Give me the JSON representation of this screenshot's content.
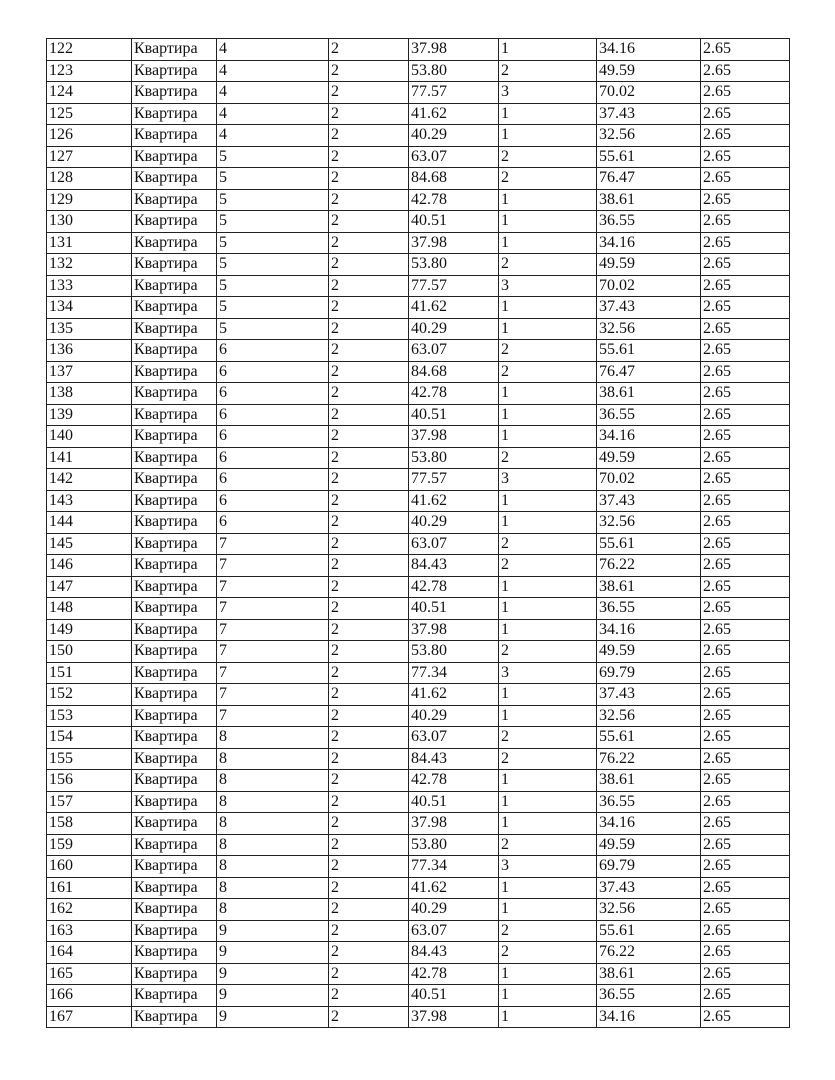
{
  "table": {
    "rows": [
      [
        "122",
        "Квартира",
        "4",
        "2",
        "37.98",
        "1",
        "34.16",
        "2.65"
      ],
      [
        "123",
        "Квартира",
        "4",
        "2",
        "53.80",
        "2",
        "49.59",
        "2.65"
      ],
      [
        "124",
        "Квартира",
        "4",
        "2",
        "77.57",
        "3",
        "70.02",
        "2.65"
      ],
      [
        "125",
        "Квартира",
        "4",
        "2",
        "41.62",
        "1",
        "37.43",
        "2.65"
      ],
      [
        "126",
        "Квартира",
        "4",
        "2",
        "40.29",
        "1",
        "32.56",
        "2.65"
      ],
      [
        "127",
        "Квартира",
        "5",
        "2",
        "63.07",
        "2",
        "55.61",
        "2.65"
      ],
      [
        "128",
        "Квартира",
        "5",
        "2",
        "84.68",
        "2",
        "76.47",
        "2.65"
      ],
      [
        "129",
        "Квартира",
        "5",
        "2",
        "42.78",
        "1",
        "38.61",
        "2.65"
      ],
      [
        "130",
        "Квартира",
        "5",
        "2",
        "40.51",
        "1",
        "36.55",
        "2.65"
      ],
      [
        "131",
        "Квартира",
        "5",
        "2",
        "37.98",
        "1",
        "34.16",
        "2.65"
      ],
      [
        "132",
        "Квартира",
        "5",
        "2",
        "53.80",
        "2",
        "49.59",
        "2.65"
      ],
      [
        "133",
        "Квартира",
        "5",
        "2",
        "77.57",
        "3",
        "70.02",
        "2.65"
      ],
      [
        "134",
        "Квартира",
        "5",
        "2",
        "41.62",
        "1",
        "37.43",
        "2.65"
      ],
      [
        "135",
        "Квартира",
        "5",
        "2",
        "40.29",
        "1",
        "32.56",
        "2.65"
      ],
      [
        "136",
        "Квартира",
        "6",
        "2",
        "63.07",
        "2",
        "55.61",
        "2.65"
      ],
      [
        "137",
        "Квартира",
        "6",
        "2",
        "84.68",
        "2",
        "76.47",
        "2.65"
      ],
      [
        "138",
        "Квартира",
        "6",
        "2",
        "42.78",
        "1",
        "38.61",
        "2.65"
      ],
      [
        "139",
        "Квартира",
        "6",
        "2",
        "40.51",
        "1",
        "36.55",
        "2.65"
      ],
      [
        "140",
        "Квартира",
        "6",
        "2",
        "37.98",
        "1",
        "34.16",
        "2.65"
      ],
      [
        "141",
        "Квартира",
        "6",
        "2",
        "53.80",
        "2",
        "49.59",
        "2.65"
      ],
      [
        "142",
        "Квартира",
        "6",
        "2",
        "77.57",
        "3",
        "70.02",
        "2.65"
      ],
      [
        "143",
        "Квартира",
        "6",
        "2",
        "41.62",
        "1",
        "37.43",
        "2.65"
      ],
      [
        "144",
        "Квартира",
        "6",
        "2",
        "40.29",
        "1",
        "32.56",
        "2.65"
      ],
      [
        "145",
        "Квартира",
        "7",
        "2",
        "63.07",
        "2",
        "55.61",
        "2.65"
      ],
      [
        "146",
        "Квартира",
        "7",
        "2",
        "84.43",
        "2",
        "76.22",
        "2.65"
      ],
      [
        "147",
        "Квартира",
        "7",
        "2",
        "42.78",
        "1",
        "38.61",
        "2.65"
      ],
      [
        "148",
        "Квартира",
        "7",
        "2",
        "40.51",
        "1",
        "36.55",
        "2.65"
      ],
      [
        "149",
        "Квартира",
        "7",
        "2",
        "37.98",
        "1",
        "34.16",
        "2.65"
      ],
      [
        "150",
        "Квартира",
        "7",
        "2",
        "53.80",
        "2",
        "49.59",
        "2.65"
      ],
      [
        "151",
        "Квартира",
        "7",
        "2",
        "77.34",
        "3",
        "69.79",
        "2.65"
      ],
      [
        "152",
        "Квартира",
        "7",
        "2",
        "41.62",
        "1",
        "37.43",
        "2.65"
      ],
      [
        "153",
        "Квартира",
        "7",
        "2",
        "40.29",
        "1",
        "32.56",
        "2.65"
      ],
      [
        "154",
        "Квартира",
        "8",
        "2",
        "63.07",
        "2",
        "55.61",
        "2.65"
      ],
      [
        "155",
        "Квартира",
        "8",
        "2",
        "84.43",
        "2",
        "76.22",
        "2.65"
      ],
      [
        "156",
        "Квартира",
        "8",
        "2",
        "42.78",
        "1",
        "38.61",
        "2.65"
      ],
      [
        "157",
        "Квартира",
        "8",
        "2",
        "40.51",
        "1",
        "36.55",
        "2.65"
      ],
      [
        "158",
        "Квартира",
        "8",
        "2",
        "37.98",
        "1",
        "34.16",
        "2.65"
      ],
      [
        "159",
        "Квартира",
        "8",
        "2",
        "53.80",
        "2",
        "49.59",
        "2.65"
      ],
      [
        "160",
        "Квартира",
        "8",
        "2",
        "77.34",
        "3",
        "69.79",
        "2.65"
      ],
      [
        "161",
        "Квартира",
        "8",
        "2",
        "41.62",
        "1",
        "37.43",
        "2.65"
      ],
      [
        "162",
        "Квартира",
        "8",
        "2",
        "40.29",
        "1",
        "32.56",
        "2.65"
      ],
      [
        "163",
        "Квартира",
        "9",
        "2",
        "63.07",
        "2",
        "55.61",
        "2.65"
      ],
      [
        "164",
        "Квартира",
        "9",
        "2",
        "84.43",
        "2",
        "76.22",
        "2.65"
      ],
      [
        "165",
        "Квартира",
        "9",
        "2",
        "42.78",
        "1",
        "38.61",
        "2.65"
      ],
      [
        "166",
        "Квартира",
        "9",
        "2",
        "40.51",
        "1",
        "36.55",
        "2.65"
      ],
      [
        "167",
        "Квартира",
        "9",
        "2",
        "37.98",
        "1",
        "34.16",
        "2.65"
      ]
    ]
  }
}
